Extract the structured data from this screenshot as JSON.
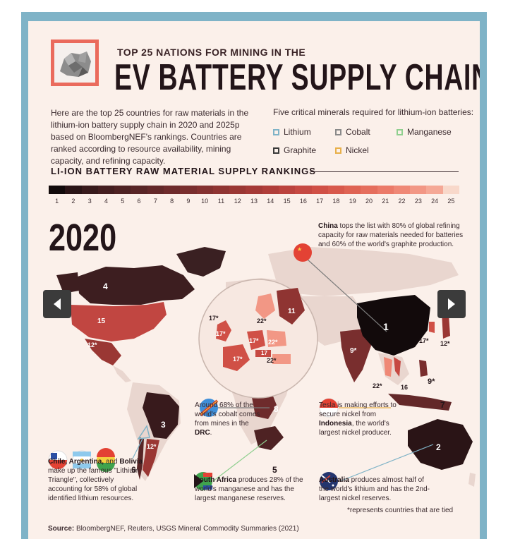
{
  "header": {
    "kicker": "TOP 25 NATIONS FOR MINING IN THE",
    "title": "EV BATTERY SUPPLY CHAIN"
  },
  "intro": "Here are the top 25 countries for raw materials in the lithium-ion battery supply chain in 2020 and 2025p based on BloombergNEF's rankings. Countries are ranked according to resource availability, mining capacity, and refining capacity.",
  "minerals": {
    "heading": "Five critical minerals required for lithium-ion batteries:",
    "items": [
      {
        "label": "Lithium",
        "color": "#7fb3c7"
      },
      {
        "label": "Cobalt",
        "color": "#8a8a8a"
      },
      {
        "label": "Manganese",
        "color": "#8fcf8f"
      },
      {
        "label": "Graphite",
        "color": "#3a3a3a"
      },
      {
        "label": "Nickel",
        "color": "#e8b04a"
      }
    ]
  },
  "rankings": {
    "heading": "LI-ION BATTERY RAW MATERIAL SUPPLY RANKINGS",
    "scale": [
      "1",
      "2",
      "3",
      "4",
      "5",
      "6",
      "7",
      "8",
      "9",
      "10",
      "11",
      "12",
      "13",
      "14",
      "15",
      "16",
      "17",
      "18",
      "19",
      "20",
      "21",
      "22",
      "23",
      "24",
      "25"
    ],
    "colors": [
      "#120a0b",
      "#2a1416",
      "#381a1c",
      "#441e20",
      "#4e2223",
      "#582526",
      "#632829",
      "#6e2b2c",
      "#792e2e",
      "#843130",
      "#8f3432",
      "#9a3734",
      "#a53a37",
      "#b03e3a",
      "#bb433e",
      "#c64942",
      "#d05046",
      "#d8594c",
      "#df6353",
      "#e56e5d",
      "#eb7a69",
      "#ef8876",
      "#f29785",
      "#f5a896",
      "#f8d8ca"
    ]
  },
  "year": "2020",
  "map": {
    "labels": {
      "canada": "4",
      "usa": "15",
      "mexico": "12*",
      "brazil": "3",
      "argentina": "12*",
      "chile": "6",
      "china": "1",
      "india": "9*",
      "australia": "2",
      "drc": "8",
      "south_africa": "5",
      "indonesia": "7",
      "philippines": "9*",
      "vietnam": "16",
      "thailand": "22*",
      "korea": "17*",
      "japan": "12*",
      "russia": "11",
      "finland": "22*",
      "uk": "17*",
      "france": "17*",
      "germany": "17*",
      "poland": "22*",
      "czechia": "17",
      "hungary": "22*",
      "norway": "17*"
    }
  },
  "annotations": {
    "china": {
      "bold": "China",
      "text": " tops the list with 80% of global refining capacity for raw materials needed for batteries and 60% of the world's graphite production."
    },
    "drc": {
      "pre": "Around 68% of the world's cobalt comes from mines in the ",
      "bold": "DRC",
      "post": "."
    },
    "indonesia": {
      "pre": "Tesla is making efforts to secure nickel from ",
      "bold": "Indonesia",
      "post": ", the world's largest nickel producer."
    },
    "triangle": {
      "bold": "Chile, Argentina,",
      "mid": " and ",
      "bold2": "Bolivia",
      "post": " make up the famous \"Lithium Triangle\", collectively accounting for 58% of global identified lithium resources."
    },
    "south_africa": {
      "bold": "South Africa",
      "text": " produces 28% of the world's manganese and has the largest manganese reserves."
    },
    "australia": {
      "bold": "Australia",
      "text": " produces almost half of the world's lithium and has the 2nd-largest nickel reserves."
    }
  },
  "tied_note": "*represents countries that are tied",
  "source": {
    "label": "Source:",
    "text": " BloombergNEF, Reuters, USGS Mineral Commodity Summaries (2021)"
  }
}
